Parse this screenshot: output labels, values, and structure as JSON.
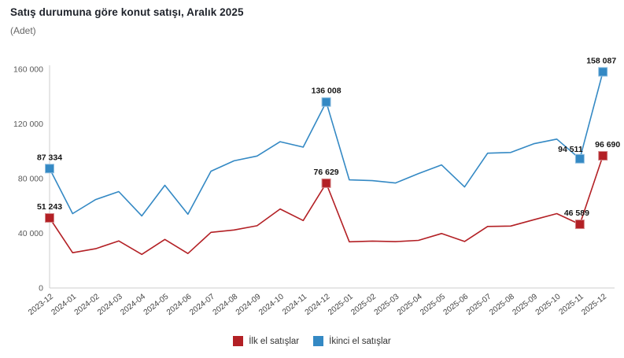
{
  "header": {
    "title": "Satış durumuna göre konut satışı, Aralık 2025",
    "subtitle": "(Adet)"
  },
  "chart_data": {
    "type": "line",
    "title": "Satış durumuna göre konut satışı, Aralık 2025",
    "ylabel": "(Adet)",
    "grid": false,
    "legend_position": "bottom",
    "axis_color": "#cccccc",
    "categories": [
      "2023-12",
      "2024-01",
      "2024-02",
      "2024-03",
      "2024-04",
      "2024-05",
      "2024-06",
      "2024-07",
      "2024-08",
      "2024-09",
      "2024-10",
      "2024-11",
      "2024-12",
      "2025-01",
      "2025-02",
      "2025-03",
      "2025-04",
      "2025-05",
      "2025-06",
      "2025-07",
      "2025-08",
      "2025-09",
      "2025-10",
      "2025-11",
      "2025-12"
    ],
    "series": [
      {
        "name": "İlk el satışlar",
        "color": "#b32025",
        "marker_stroke": "#d4888a",
        "values": [
          51243,
          25800,
          28700,
          34400,
          24600,
          35500,
          25200,
          40700,
          42400,
          45500,
          57800,
          49300,
          76629,
          33800,
          34300,
          33900,
          34800,
          39800,
          34000,
          45000,
          45300,
          49900,
          54400,
          46589,
          96690
        ]
      },
      {
        "name": "İkinci el satışlar",
        "color": "#3489c4",
        "marker_stroke": "#94c1e1",
        "values": [
          87334,
          54400,
          64700,
          70500,
          52700,
          75100,
          53900,
          85400,
          93000,
          96500,
          107000,
          103000,
          136008,
          79100,
          78500,
          76800,
          83700,
          90000,
          73900,
          98600,
          99100,
          105500,
          108900,
          94511,
          158087
        ]
      }
    ],
    "labeled_points": [
      {
        "series": 0,
        "index": 0,
        "label": "51 243"
      },
      {
        "series": 0,
        "index": 12,
        "label": "76 629"
      },
      {
        "series": 0,
        "index": 23,
        "label": "46 589",
        "dx": -4
      },
      {
        "series": 0,
        "index": 24,
        "label": "96 690",
        "dx": 6
      },
      {
        "series": 1,
        "index": 0,
        "label": "87 334"
      },
      {
        "series": 1,
        "index": 12,
        "label": "136 008"
      },
      {
        "series": 1,
        "index": 23,
        "label": "94 511",
        "dx": -12,
        "dy": 2
      },
      {
        "series": 1,
        "index": 24,
        "label": "158 087",
        "dx": -2
      }
    ],
    "y_axis": {
      "ylim": [
        0,
        160000
      ],
      "ticks": [
        0,
        40000,
        80000,
        120000,
        160000
      ],
      "tick_labels": [
        "0",
        "40 000",
        "80 000",
        "120 000",
        "160 000"
      ]
    }
  },
  "legend": {
    "items": [
      {
        "label": "İlk el satışlar",
        "color": "#b32025"
      },
      {
        "label": "İkinci el satışlar",
        "color": "#3489c4"
      }
    ]
  }
}
